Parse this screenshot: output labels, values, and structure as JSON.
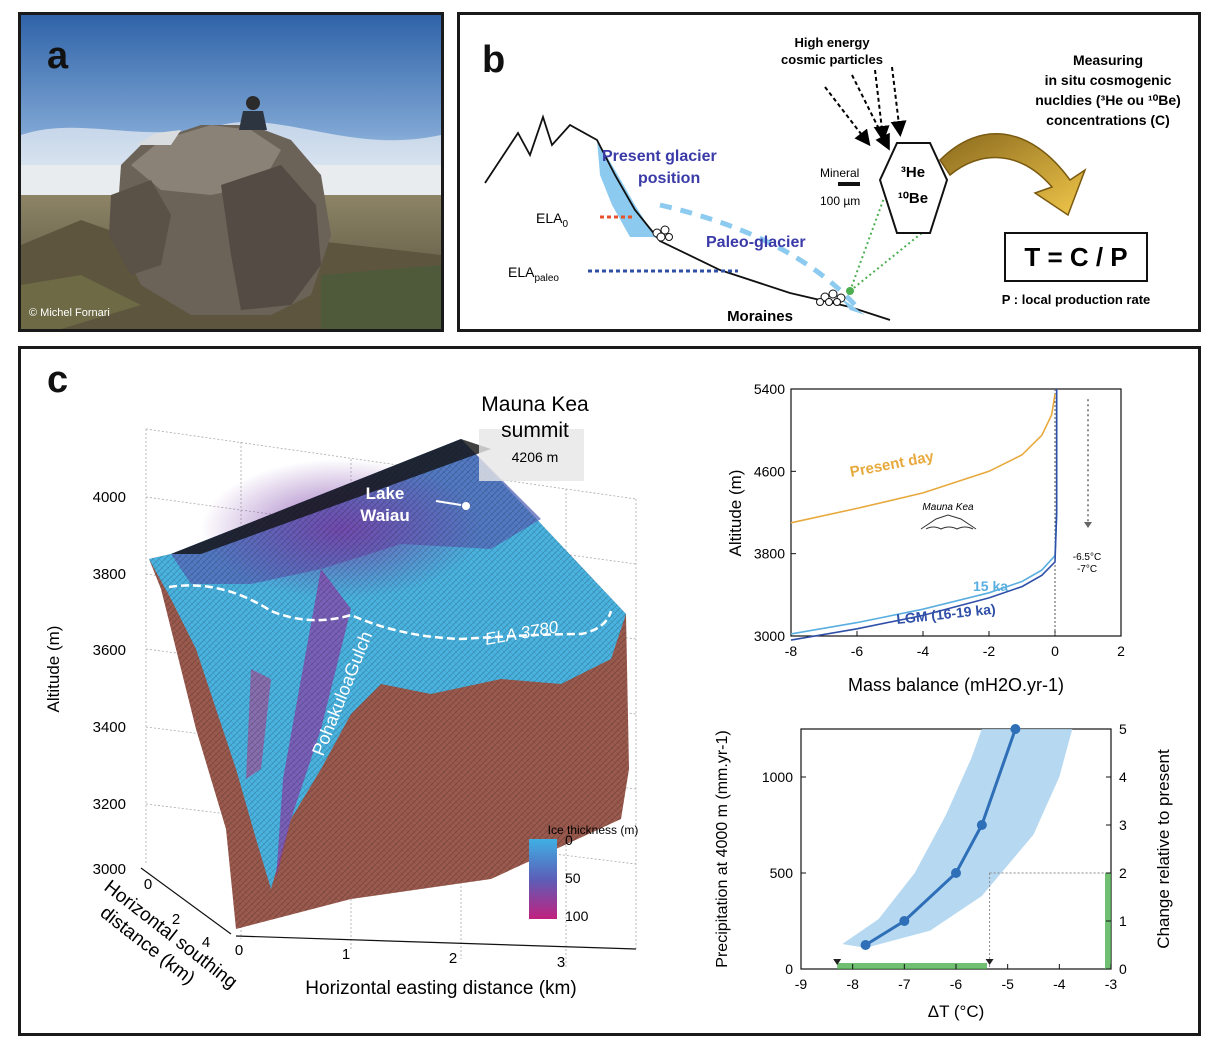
{
  "colors": {
    "ice_blue": "#4a9fd4",
    "glacier_label": "#3a3aa8",
    "present_day": "#e8a93c",
    "ka15": "#5aaee0",
    "lgm": "#2f4fa8",
    "moraine_brown": "#9b5a4e",
    "green": "#4caf50",
    "band": "#a9d2ef"
  },
  "panel_a": {
    "label": "a",
    "credit": "© Michel Fornari"
  },
  "panel_b": {
    "label": "b",
    "cosmic": [
      "High energy",
      "cosmic particles"
    ],
    "measuring": [
      "Measuring",
      "in situ cosmogenic",
      "nucldies (³He ou ¹⁰Be)",
      "concentrations (C)"
    ],
    "present_glacier": [
      "Present glacier",
      "position"
    ],
    "paleo_glacier": "Paleo-glacier",
    "ela0": "ELA",
    "ela0_sub": "0",
    "ela_paleo": "ELA",
    "ela_paleo_sub": "paleo",
    "mineral": "Mineral",
    "scale": "100 µm",
    "he": "³He",
    "be": "¹⁰Be",
    "moraines": "Moraines",
    "formula": "T = C / P",
    "production": "P : local production rate"
  },
  "panel_c": {
    "label": "c",
    "summit": [
      "Mauna Kea",
      "summit"
    ],
    "summit_alt": "4206 m",
    "lake": [
      "Lake",
      "Waiau"
    ],
    "gulch": "PohakuloaGulch",
    "ela": "ELA 3780",
    "ylabel": "Altitude (m)",
    "yticks": [
      "4000",
      "3800",
      "3600",
      "3400",
      "3200",
      "3000"
    ],
    "xlabel": "Horizontal easting distance (km)",
    "xticks": [
      "0",
      "1",
      "2",
      "3"
    ],
    "zlabel": [
      "Horizontal southing",
      "distance (km)"
    ],
    "zticks": [
      "0",
      "2",
      "4"
    ],
    "cbar_title": "Ice thickness (m)",
    "cbar_ticks": [
      "0",
      "50",
      "100"
    ]
  },
  "chart_data": [
    {
      "type": "line",
      "xlabel": "Mass balance (mH2O.yr-1)",
      "ylabel": "Altitude (m)",
      "xlim": [
        -8,
        2
      ],
      "ylim": [
        3000,
        5400
      ],
      "xticks": [
        "-8",
        "-6",
        "-4",
        "-2",
        "0",
        "2"
      ],
      "yticks": [
        "3000",
        "3800",
        "4600",
        "5400"
      ],
      "series": [
        {
          "name": "Present day",
          "points": [
            [
              -8,
              4100
            ],
            [
              -6,
              4240
            ],
            [
              -4,
              4390
            ],
            [
              -2,
              4600
            ],
            [
              -1,
              4760
            ],
            [
              -0.4,
              4950
            ],
            [
              -0.1,
              5150
            ],
            [
              0,
              5350
            ]
          ]
        },
        {
          "name": "15 ka",
          "points": [
            [
              -8,
              3020
            ],
            [
              -6,
              3130
            ],
            [
              -4,
              3260
            ],
            [
              -2,
              3420
            ],
            [
              -1,
              3530
            ],
            [
              -0.4,
              3640
            ],
            [
              0,
              3780
            ],
            [
              0.05,
              4200
            ],
            [
              0.05,
              5400
            ]
          ]
        },
        {
          "name": "LGM (16-19 ka)",
          "points": [
            [
              -8,
              2960
            ],
            [
              -6,
              3070
            ],
            [
              -4,
              3200
            ],
            [
              -2,
              3370
            ],
            [
              -1,
              3480
            ],
            [
              -0.4,
              3590
            ],
            [
              0,
              3720
            ],
            [
              0.05,
              4200
            ],
            [
              0.05,
              5400
            ]
          ]
        }
      ],
      "annotation": [
        "-6.5°C",
        "-7°C"
      ],
      "inset_label": "Mauna Kea"
    },
    {
      "type": "line",
      "xlabel": "ΔT (°C)",
      "ylabel": "Precipitation at 4000 m (mm.yr-1)",
      "y2label": "Change relative to present",
      "xlim": [
        -9,
        -3
      ],
      "ylim": [
        0,
        1250
      ],
      "y2lim": [
        0,
        5
      ],
      "xticks": [
        "-9",
        "-8",
        "-7",
        "-6",
        "-5",
        "-4",
        "-3"
      ],
      "yticks": [
        "0",
        "500",
        "1000"
      ],
      "y2ticks": [
        "0",
        "1",
        "2",
        "3",
        "4",
        "5"
      ],
      "series": [
        {
          "name": "",
          "points": [
            [
              -7.75,
              125
            ],
            [
              -7,
              250
            ],
            [
              -6,
              500
            ],
            [
              -5.5,
              750
            ],
            [
              -4.85,
              1250
            ]
          ]
        }
      ],
      "band_lower": [
        [
          -7.75,
          110
        ],
        [
          -6.5,
          200
        ],
        [
          -5.5,
          380
        ],
        [
          -4.5,
          700
        ],
        [
          -4.0,
          1000
        ],
        [
          -3.75,
          1250
        ]
      ],
      "band_upper": [
        [
          -8.2,
          130
        ],
        [
          -7.5,
          260
        ],
        [
          -6.8,
          500
        ],
        [
          -6.2,
          800
        ],
        [
          -5.7,
          1100
        ],
        [
          -5.5,
          1250
        ]
      ],
      "ref_x": -5.35,
      "ref_y": 500,
      "green_bar_x": [
        -8.3,
        -5.4
      ],
      "green_bar_y2": [
        0,
        2
      ]
    }
  ]
}
